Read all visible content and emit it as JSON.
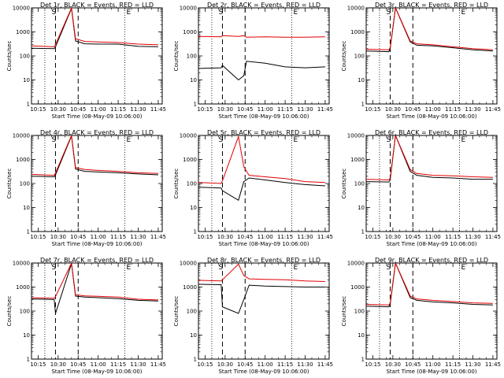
{
  "figure": {
    "xlabel": "Start Time (08-May-09 10:06:00)",
    "ylabel": "Counts/sec",
    "colors": {
      "events": "#000000",
      "lld": "#e00000"
    },
    "x_tick_labels": [
      "10:15",
      "10:30",
      "10:45",
      "11:00",
      "11:15",
      "11:30",
      "11:45"
    ],
    "y_tick_labels": [
      "1",
      "10",
      "100",
      "1000",
      "10000"
    ],
    "markers": {
      "start": "S",
      "end": "E"
    }
  },
  "chart_data": [
    {
      "type": "line",
      "title": "Det 1r, BLACK = Events, RED = LLD",
      "xlim": [
        10.167,
        11.8
      ],
      "ylim": [
        1,
        10000
      ],
      "yscale": "log",
      "grid": false,
      "x_ticks": [
        "10:15",
        "10:30",
        "10:45",
        "11:00",
        "11:15",
        "11:30",
        "11:45"
      ],
      "vlines_dashed": [
        "10:28",
        "10:45"
      ],
      "vlines_dotted": [
        "10:20",
        "11:20"
      ],
      "series": [
        {
          "name": "Events",
          "color": "black",
          "x": [
            "10:10",
            "10:27",
            "10:28",
            "10:40",
            "10:43",
            "10:50",
            "11:00",
            "11:15",
            "11:30",
            "11:45"
          ],
          "y": [
            210,
            200,
            240,
            9500,
            420,
            320,
            310,
            310,
            250,
            240
          ]
        },
        {
          "name": "LLD",
          "color": "red",
          "x": [
            "10:10",
            "10:27",
            "10:28",
            "10:40",
            "10:43",
            "10:50",
            "11:00",
            "11:15",
            "11:30",
            "11:45"
          ],
          "y": [
            260,
            240,
            300,
            10000,
            520,
            400,
            380,
            360,
            310,
            290
          ]
        }
      ]
    },
    {
      "type": "line",
      "title": "Det 2r, BLACK = Events, RED = LLD",
      "xlim": [
        10.167,
        11.8
      ],
      "ylim": [
        1,
        10000
      ],
      "yscale": "log",
      "grid": false,
      "x_ticks": [
        "10:15",
        "10:30",
        "10:45",
        "11:00",
        "11:15",
        "11:30",
        "11:45"
      ],
      "vlines_dashed": [
        "10:28",
        "10:45"
      ],
      "vlines_dotted": [
        "10:20",
        "11:20"
      ],
      "series": [
        {
          "name": "Events",
          "color": "black",
          "x": [
            "10:10",
            "10:27",
            "10:28",
            "10:40",
            "10:44",
            "10:46",
            "11:00",
            "11:15",
            "11:30",
            "11:45"
          ],
          "y": [
            30,
            32,
            40,
            10,
            15,
            60,
            50,
            35,
            32,
            35
          ]
        },
        {
          "name": "LLD",
          "color": "red",
          "x": [
            "10:10",
            "10:27",
            "10:28",
            "10:40",
            "10:44",
            "10:46",
            "11:00",
            "11:15",
            "11:30",
            "11:45"
          ],
          "y": [
            650,
            620,
            700,
            650,
            700,
            600,
            620,
            600,
            600,
            620
          ]
        }
      ]
    },
    {
      "type": "line",
      "title": "Det 3r, BLACK = Events, RED = LLD",
      "xlim": [
        10.167,
        11.8
      ],
      "ylim": [
        1,
        10000
      ],
      "yscale": "log",
      "grid": false,
      "x_ticks": [
        "10:15",
        "10:30",
        "10:45",
        "11:00",
        "11:15",
        "11:30",
        "11:45"
      ],
      "vlines_dashed": [
        "10:28",
        "10:45"
      ],
      "vlines_dotted": [
        "10:20",
        "11:20"
      ],
      "series": [
        {
          "name": "Events",
          "color": "black",
          "x": [
            "10:10",
            "10:27",
            "10:28",
            "10:32",
            "10:43",
            "10:48",
            "11:00",
            "11:15",
            "11:30",
            "11:45"
          ],
          "y": [
            160,
            150,
            200,
            10000,
            380,
            280,
            260,
            220,
            180,
            160
          ]
        },
        {
          "name": "LLD",
          "color": "red",
          "x": [
            "10:10",
            "10:27",
            "10:28",
            "10:32",
            "10:43",
            "10:48",
            "11:00",
            "11:15",
            "11:30",
            "11:45"
          ],
          "y": [
            190,
            180,
            220,
            10000,
            420,
            320,
            290,
            240,
            200,
            180
          ]
        }
      ]
    },
    {
      "type": "line",
      "title": "Det 4r, BLACK = Events, RED = LLD",
      "xlim": [
        10.167,
        11.8
      ],
      "ylim": [
        1,
        10000
      ],
      "yscale": "log",
      "grid": false,
      "x_ticks": [
        "10:15",
        "10:30",
        "10:45",
        "11:00",
        "11:15",
        "11:30",
        "11:45"
      ],
      "vlines_dashed": [
        "10:28",
        "10:45"
      ],
      "vlines_dotted": [
        "10:20",
        "11:20"
      ],
      "series": [
        {
          "name": "Events",
          "color": "black",
          "x": [
            "10:10",
            "10:27",
            "10:28",
            "10:40",
            "10:43",
            "10:50",
            "11:00",
            "11:15",
            "11:30",
            "11:45"
          ],
          "y": [
            200,
            190,
            230,
            9500,
            400,
            320,
            300,
            280,
            250,
            230
          ]
        },
        {
          "name": "LLD",
          "color": "red",
          "x": [
            "10:10",
            "10:27",
            "10:28",
            "10:40",
            "10:43",
            "10:50",
            "11:00",
            "11:15",
            "11:30",
            "11:45"
          ],
          "y": [
            240,
            220,
            280,
            10000,
            460,
            380,
            350,
            320,
            280,
            260
          ]
        }
      ]
    },
    {
      "type": "line",
      "title": "Det 5r, BLACK = Events, RED = LLD",
      "xlim": [
        10.167,
        11.8
      ],
      "ylim": [
        1,
        10000
      ],
      "yscale": "log",
      "grid": false,
      "x_ticks": [
        "10:15",
        "10:30",
        "10:45",
        "11:00",
        "11:15",
        "11:30",
        "11:45"
      ],
      "vlines_dashed": [
        "10:28",
        "10:45"
      ],
      "vlines_dotted": [
        "10:20",
        "11:20"
      ],
      "series": [
        {
          "name": "Events",
          "color": "black",
          "x": [
            "10:10",
            "10:27",
            "10:28",
            "10:40",
            "10:44",
            "10:48",
            "11:00",
            "11:15",
            "11:30",
            "11:45"
          ],
          "y": [
            70,
            65,
            50,
            20,
            120,
            170,
            140,
            110,
            90,
            80
          ]
        },
        {
          "name": "LLD",
          "color": "red",
          "x": [
            "10:10",
            "10:27",
            "10:28",
            "10:40",
            "10:44",
            "10:48",
            "11:00",
            "11:15",
            "11:30",
            "11:45"
          ],
          "y": [
            110,
            100,
            130,
            9000,
            500,
            220,
            190,
            160,
            120,
            110
          ]
        }
      ]
    },
    {
      "type": "line",
      "title": "Det 6r, BLACK = Events, RED = LLD",
      "xlim": [
        10.167,
        11.8
      ],
      "ylim": [
        1,
        10000
      ],
      "yscale": "log",
      "grid": false,
      "x_ticks": [
        "10:15",
        "10:30",
        "10:45",
        "11:00",
        "11:15",
        "11:30",
        "11:45"
      ],
      "vlines_dashed": [
        "10:28",
        "10:45"
      ],
      "vlines_dotted": [
        "10:20",
        "11:20"
      ],
      "series": [
        {
          "name": "Events",
          "color": "black",
          "x": [
            "10:10",
            "10:27",
            "10:28",
            "10:32",
            "10:43",
            "10:48",
            "11:00",
            "11:15",
            "11:30",
            "11:45"
          ],
          "y": [
            120,
            115,
            140,
            10000,
            320,
            220,
            180,
            170,
            150,
            150
          ]
        },
        {
          "name": "LLD",
          "color": "red",
          "x": [
            "10:10",
            "10:27",
            "10:28",
            "10:32",
            "10:43",
            "10:48",
            "11:00",
            "11:15",
            "11:30",
            "11:45"
          ],
          "y": [
            150,
            140,
            170,
            10000,
            380,
            260,
            220,
            210,
            190,
            180
          ]
        }
      ]
    },
    {
      "type": "line",
      "title": "Det 7r, BLACK = Events, RED = LLD",
      "xlim": [
        10.167,
        11.8
      ],
      "ylim": [
        1,
        10000
      ],
      "yscale": "log",
      "grid": false,
      "x_ticks": [
        "10:15",
        "10:30",
        "10:45",
        "11:00",
        "11:15",
        "11:30",
        "11:45"
      ],
      "vlines_dashed": [
        "10:28",
        "10:45"
      ],
      "vlines_dotted": [
        "10:20",
        "11:20"
      ],
      "series": [
        {
          "name": "Events",
          "color": "black",
          "x": [
            "10:10",
            "10:27",
            "10:28",
            "10:40",
            "10:43",
            "10:50",
            "11:00",
            "11:15",
            "11:30",
            "11:45"
          ],
          "y": [
            320,
            300,
            80,
            9500,
            420,
            380,
            360,
            330,
            280,
            260
          ]
        },
        {
          "name": "LLD",
          "color": "red",
          "x": [
            "10:10",
            "10:27",
            "10:28",
            "10:40",
            "10:43",
            "10:50",
            "11:00",
            "11:15",
            "11:30",
            "11:45"
          ],
          "y": [
            360,
            340,
            400,
            10000,
            480,
            430,
            410,
            380,
            310,
            290
          ]
        }
      ]
    },
    {
      "type": "line",
      "title": "Det 8r, BLACK = Events, RED = LLD",
      "xlim": [
        10.167,
        11.8
      ],
      "ylim": [
        1,
        10000
      ],
      "yscale": "log",
      "grid": false,
      "x_ticks": [
        "10:15",
        "10:30",
        "10:45",
        "11:00",
        "11:15",
        "11:30",
        "11:45"
      ],
      "vlines_dashed": [
        "10:28",
        "10:45"
      ],
      "vlines_dotted": [
        "10:20",
        "11:20"
      ],
      "series": [
        {
          "name": "Events",
          "color": "black",
          "x": [
            "10:10",
            "10:27",
            "10:28",
            "10:40",
            "10:44",
            "10:48",
            "11:00",
            "11:15",
            "11:30",
            "11:45"
          ],
          "y": [
            1300,
            1250,
            150,
            80,
            300,
            1200,
            1100,
            1050,
            1000,
            1000
          ]
        },
        {
          "name": "LLD",
          "color": "red",
          "x": [
            "10:10",
            "10:27",
            "10:28",
            "10:40",
            "10:44",
            "10:48",
            "11:00",
            "11:15",
            "11:30",
            "11:45"
          ],
          "y": [
            1900,
            1800,
            2000,
            9000,
            3000,
            2200,
            2100,
            2000,
            1800,
            1700
          ]
        }
      ]
    },
    {
      "type": "line",
      "title": "Det 9r, BLACK = Events, RED = LLD",
      "xlim": [
        10.167,
        11.8
      ],
      "ylim": [
        1,
        10000
      ],
      "yscale": "log",
      "grid": false,
      "x_ticks": [
        "10:15",
        "10:30",
        "10:45",
        "11:00",
        "11:15",
        "11:30",
        "11:45"
      ],
      "vlines_dashed": [
        "10:28",
        "10:45"
      ],
      "vlines_dotted": [
        "10:20",
        "11:20"
      ],
      "series": [
        {
          "name": "Events",
          "color": "black",
          "x": [
            "10:10",
            "10:27",
            "10:28",
            "10:32",
            "10:43",
            "10:48",
            "11:00",
            "11:15",
            "11:30",
            "11:45"
          ],
          "y": [
            160,
            150,
            190,
            10000,
            360,
            280,
            240,
            220,
            190,
            180
          ]
        },
        {
          "name": "LLD",
          "color": "red",
          "x": [
            "10:10",
            "10:27",
            "10:28",
            "10:32",
            "10:43",
            "10:48",
            "11:00",
            "11:15",
            "11:30",
            "11:45"
          ],
          "y": [
            190,
            180,
            220,
            10000,
            420,
            320,
            280,
            250,
            220,
            210
          ]
        }
      ]
    }
  ]
}
